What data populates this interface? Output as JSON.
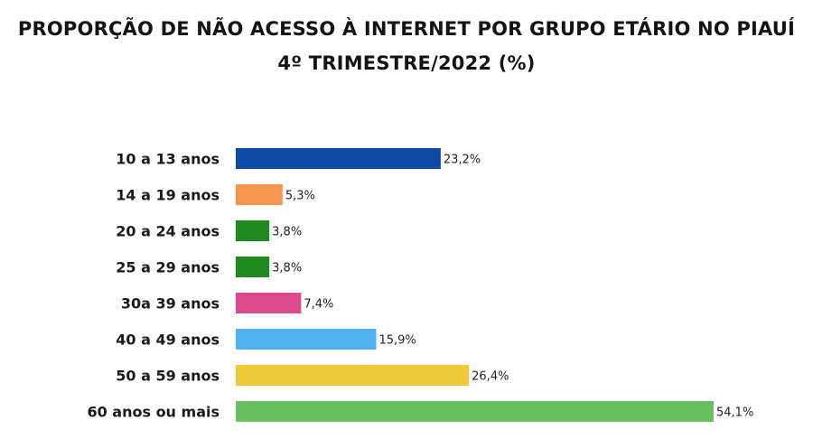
{
  "chart_data": {
    "type": "bar",
    "orientation": "horizontal",
    "title": "PROPORÇÃO DE NÃO ACESSO À INTERNET POR GRUPO ETÁRIO NO PIAUÍ",
    "subtitle": "4º TRIMESTRE/2022 (%)",
    "categories": [
      "10 a 13 anos",
      "14 a 19 anos",
      "20 a 24 anos",
      "25 a 29 anos",
      "30a 39 anos",
      "40 a 49 anos",
      "50 a 59 anos",
      "60 anos ou mais"
    ],
    "values": [
      23.2,
      5.3,
      3.8,
      3.8,
      7.4,
      15.9,
      26.4,
      54.1
    ],
    "value_labels": [
      "23,2%",
      "5,3%",
      "3,8%",
      "3,8%",
      "7,4%",
      "15,9%",
      "26,4%",
      "54,1%"
    ],
    "colors": [
      "#0b4aa6",
      "#f7944f",
      "#1f8a1f",
      "#1f8a1f",
      "#dd4a8c",
      "#50b2ee",
      "#efcb3a",
      "#6abf61"
    ],
    "xlim": [
      0,
      54.1
    ],
    "grid": false,
    "legend": "none"
  }
}
